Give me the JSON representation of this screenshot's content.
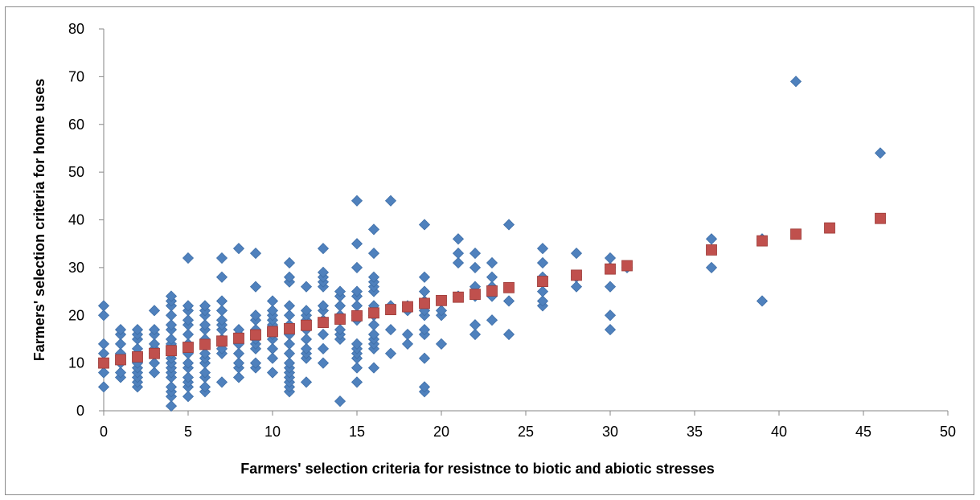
{
  "chart_data": {
    "type": "scatter",
    "title": "",
    "xlabel": "Farmers' selection criteria for resistnce to biotic and abiotic stresses",
    "ylabel": "Farmers' selection criteria for  home uses",
    "xlim": [
      0,
      50
    ],
    "ylim": [
      0,
      80
    ],
    "xticks": [
      "0",
      "5",
      "10",
      "15",
      "20",
      "25",
      "30",
      "35",
      "40",
      "45",
      "50"
    ],
    "yticks": [
      "0",
      "10",
      "20",
      "30",
      "40",
      "50",
      "60",
      "70",
      "80"
    ],
    "grid": false,
    "legend": "none",
    "colors": {
      "observed": "#4F81BD",
      "fitted": "#C0504D"
    },
    "series": [
      {
        "marker": "diamond",
        "points": [
          [
            0,
            5
          ],
          [
            0,
            8
          ],
          [
            0,
            10
          ],
          [
            0,
            12
          ],
          [
            0,
            14
          ],
          [
            0,
            20
          ],
          [
            0,
            22
          ],
          [
            1,
            7
          ],
          [
            1,
            8
          ],
          [
            1,
            10
          ],
          [
            1,
            12
          ],
          [
            1,
            14
          ],
          [
            1,
            16
          ],
          [
            1,
            17
          ],
          [
            2,
            5
          ],
          [
            2,
            6
          ],
          [
            2,
            7
          ],
          [
            2,
            8
          ],
          [
            2,
            9
          ],
          [
            2,
            10
          ],
          [
            2,
            12
          ],
          [
            2,
            13
          ],
          [
            2,
            15
          ],
          [
            2,
            16
          ],
          [
            2,
            17
          ],
          [
            3,
            8
          ],
          [
            3,
            10
          ],
          [
            3,
            12
          ],
          [
            3,
            13
          ],
          [
            3,
            14
          ],
          [
            3,
            16
          ],
          [
            3,
            17
          ],
          [
            3,
            21
          ],
          [
            4,
            1
          ],
          [
            4,
            3
          ],
          [
            4,
            4
          ],
          [
            4,
            5
          ],
          [
            4,
            7
          ],
          [
            4,
            8
          ],
          [
            4,
            9
          ],
          [
            4,
            10
          ],
          [
            4,
            11
          ],
          [
            4,
            12
          ],
          [
            4,
            14
          ],
          [
            4,
            15
          ],
          [
            4,
            17
          ],
          [
            4,
            18
          ],
          [
            4,
            20
          ],
          [
            4,
            22
          ],
          [
            4,
            23
          ],
          [
            4,
            24
          ],
          [
            5,
            3
          ],
          [
            5,
            5
          ],
          [
            5,
            6
          ],
          [
            5,
            7
          ],
          [
            5,
            9
          ],
          [
            5,
            10
          ],
          [
            5,
            12
          ],
          [
            5,
            14
          ],
          [
            5,
            16
          ],
          [
            5,
            18
          ],
          [
            5,
            19
          ],
          [
            5,
            21
          ],
          [
            5,
            22
          ],
          [
            5,
            32
          ],
          [
            6,
            4
          ],
          [
            6,
            5
          ],
          [
            6,
            7
          ],
          [
            6,
            8
          ],
          [
            6,
            10
          ],
          [
            6,
            11
          ],
          [
            6,
            12
          ],
          [
            6,
            14
          ],
          [
            6,
            15
          ],
          [
            6,
            17
          ],
          [
            6,
            18
          ],
          [
            6,
            20
          ],
          [
            6,
            21
          ],
          [
            6,
            22
          ],
          [
            7,
            6
          ],
          [
            7,
            12
          ],
          [
            7,
            13
          ],
          [
            7,
            15
          ],
          [
            7,
            17
          ],
          [
            7,
            18
          ],
          [
            7,
            19
          ],
          [
            7,
            21
          ],
          [
            7,
            23
          ],
          [
            7,
            28
          ],
          [
            7,
            32
          ],
          [
            8,
            7
          ],
          [
            8,
            9
          ],
          [
            8,
            10
          ],
          [
            8,
            12
          ],
          [
            8,
            14
          ],
          [
            8,
            16
          ],
          [
            8,
            17
          ],
          [
            8,
            34
          ],
          [
            9,
            9
          ],
          [
            9,
            10
          ],
          [
            9,
            13
          ],
          [
            9,
            14
          ],
          [
            9,
            15
          ],
          [
            9,
            17
          ],
          [
            9,
            19
          ],
          [
            9,
            20
          ],
          [
            9,
            26
          ],
          [
            9,
            33
          ],
          [
            10,
            8
          ],
          [
            10,
            11
          ],
          [
            10,
            13
          ],
          [
            10,
            15
          ],
          [
            10,
            16
          ],
          [
            10,
            18
          ],
          [
            10,
            19
          ],
          [
            10,
            20
          ],
          [
            10,
            21
          ],
          [
            10,
            23
          ],
          [
            11,
            4
          ],
          [
            11,
            5
          ],
          [
            11,
            6
          ],
          [
            11,
            7
          ],
          [
            11,
            8
          ],
          [
            11,
            9
          ],
          [
            11,
            10
          ],
          [
            11,
            12
          ],
          [
            11,
            14
          ],
          [
            11,
            16
          ],
          [
            11,
            18
          ],
          [
            11,
            20
          ],
          [
            11,
            22
          ],
          [
            11,
            27
          ],
          [
            11,
            28
          ],
          [
            11,
            31
          ],
          [
            12,
            6
          ],
          [
            12,
            11
          ],
          [
            12,
            12
          ],
          [
            12,
            13
          ],
          [
            12,
            15
          ],
          [
            12,
            17
          ],
          [
            12,
            19
          ],
          [
            12,
            20
          ],
          [
            12,
            21
          ],
          [
            12,
            26
          ],
          [
            13,
            10
          ],
          [
            13,
            13
          ],
          [
            13,
            16
          ],
          [
            13,
            19
          ],
          [
            13,
            21
          ],
          [
            13,
            22
          ],
          [
            13,
            26
          ],
          [
            13,
            27
          ],
          [
            13,
            28
          ],
          [
            13,
            29
          ],
          [
            13,
            34
          ],
          [
            14,
            2
          ],
          [
            14,
            15
          ],
          [
            14,
            16
          ],
          [
            14,
            17
          ],
          [
            14,
            20
          ],
          [
            14,
            22
          ],
          [
            14,
            24
          ],
          [
            14,
            25
          ],
          [
            15,
            6
          ],
          [
            15,
            9
          ],
          [
            15,
            11
          ],
          [
            15,
            12
          ],
          [
            15,
            13
          ],
          [
            15,
            14
          ],
          [
            15,
            19
          ],
          [
            15,
            20
          ],
          [
            15,
            22
          ],
          [
            15,
            24
          ],
          [
            15,
            25
          ],
          [
            15,
            30
          ],
          [
            15,
            35
          ],
          [
            15,
            44
          ],
          [
            16,
            9
          ],
          [
            16,
            13
          ],
          [
            16,
            14
          ],
          [
            16,
            15
          ],
          [
            16,
            16
          ],
          [
            16,
            18
          ],
          [
            16,
            20
          ],
          [
            16,
            22
          ],
          [
            16,
            25
          ],
          [
            16,
            26
          ],
          [
            16,
            27
          ],
          [
            16,
            28
          ],
          [
            16,
            33
          ],
          [
            16,
            38
          ],
          [
            17,
            12
          ],
          [
            17,
            17
          ],
          [
            17,
            22
          ],
          [
            17,
            44
          ],
          [
            18,
            14
          ],
          [
            18,
            16
          ],
          [
            18,
            21
          ],
          [
            18,
            22
          ],
          [
            19,
            4
          ],
          [
            19,
            5
          ],
          [
            19,
            11
          ],
          [
            19,
            16
          ],
          [
            19,
            17
          ],
          [
            19,
            20
          ],
          [
            19,
            21
          ],
          [
            19,
            23
          ],
          [
            19,
            25
          ],
          [
            19,
            28
          ],
          [
            19,
            39
          ],
          [
            20,
            14
          ],
          [
            20,
            20
          ],
          [
            20,
            21
          ],
          [
            20,
            23
          ],
          [
            21,
            24
          ],
          [
            21,
            31
          ],
          [
            21,
            33
          ],
          [
            21,
            36
          ],
          [
            22,
            16
          ],
          [
            22,
            18
          ],
          [
            22,
            24
          ],
          [
            22,
            26
          ],
          [
            22,
            30
          ],
          [
            22,
            33
          ],
          [
            23,
            19
          ],
          [
            23,
            24
          ],
          [
            23,
            26
          ],
          [
            23,
            28
          ],
          [
            23,
            31
          ],
          [
            24,
            16
          ],
          [
            24,
            23
          ],
          [
            24,
            39
          ],
          [
            26,
            22
          ],
          [
            26,
            23
          ],
          [
            26,
            25
          ],
          [
            26,
            28
          ],
          [
            26,
            31
          ],
          [
            26,
            34
          ],
          [
            28,
            26
          ],
          [
            28,
            28
          ],
          [
            28,
            33
          ],
          [
            30,
            17
          ],
          [
            30,
            20
          ],
          [
            30,
            26
          ],
          [
            30,
            30
          ],
          [
            30,
            32
          ],
          [
            31,
            30
          ],
          [
            36,
            30
          ],
          [
            36,
            36
          ],
          [
            39,
            23
          ],
          [
            39,
            36
          ],
          [
            41,
            69
          ],
          [
            46,
            54
          ]
        ]
      },
      {
        "marker": "square",
        "points": [
          [
            0,
            10
          ],
          [
            1,
            10.7
          ],
          [
            2,
            11.3
          ],
          [
            3,
            12
          ],
          [
            4,
            12.6
          ],
          [
            5,
            13.3
          ],
          [
            6,
            13.9
          ],
          [
            7,
            14.6
          ],
          [
            8,
            15.2
          ],
          [
            9,
            15.9
          ],
          [
            10,
            16.6
          ],
          [
            11,
            17.2
          ],
          [
            12,
            17.9
          ],
          [
            13,
            18.5
          ],
          [
            14,
            19.2
          ],
          [
            15,
            19.9
          ],
          [
            16,
            20.5
          ],
          [
            17,
            21.2
          ],
          [
            18,
            21.8
          ],
          [
            19,
            22.5
          ],
          [
            20,
            23.1
          ],
          [
            21,
            23.8
          ],
          [
            22,
            24.4
          ],
          [
            23,
            25.1
          ],
          [
            24,
            25.8
          ],
          [
            26,
            27.1
          ],
          [
            28,
            28.4
          ],
          [
            30,
            29.7
          ],
          [
            31,
            30.4
          ],
          [
            36,
            33.7
          ],
          [
            39,
            35.6
          ],
          [
            41,
            37
          ],
          [
            43,
            38.3
          ],
          [
            46,
            40.3
          ]
        ]
      }
    ]
  }
}
